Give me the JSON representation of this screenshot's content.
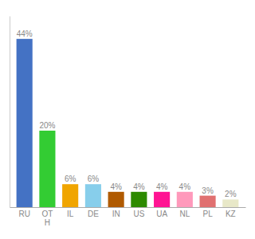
{
  "chart_data": {
    "type": "bar",
    "categories": [
      "RU",
      "OT\nH",
      "IL",
      "DE",
      "IN",
      "US",
      "UA",
      "NL",
      "PL",
      "KZ"
    ],
    "values": [
      44,
      20,
      6,
      6,
      4,
      4,
      4,
      4,
      3,
      2
    ],
    "value_labels": [
      "44%",
      "20%",
      "6%",
      "6%",
      "4%",
      "4%",
      "4%",
      "4%",
      "3%",
      "2%"
    ],
    "colors": [
      "#4472c4",
      "#33cc33",
      "#f0a500",
      "#87ceeb",
      "#b05a00",
      "#2d8a00",
      "#ff1493",
      "#ff99bb",
      "#e07070",
      "#e8e8c8"
    ],
    "ylim": [
      0,
      50
    ],
    "data_labels": true,
    "tick_labels": "x",
    "grid": false
  }
}
